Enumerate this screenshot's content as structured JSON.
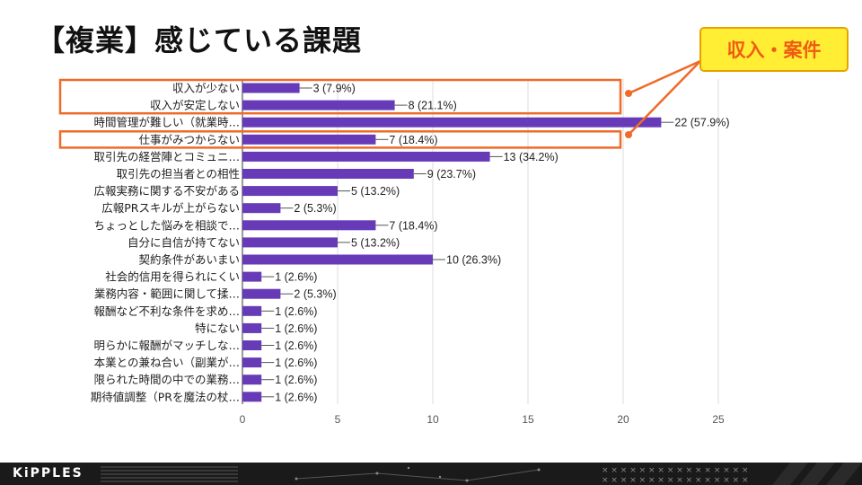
{
  "slide": {
    "title": "【複業】感じている課題",
    "callout_label": "収入・案件",
    "footer_logo": "KiPPLES"
  },
  "colors": {
    "bar": "#673ab7",
    "highlight": "#f06a28",
    "callout_bg": "#ffee33",
    "callout_text": "#f05a14",
    "footer_bg": "#1a1a1a"
  },
  "chart_data": {
    "type": "bar",
    "orientation": "horizontal",
    "categories": [
      "収入が少ない",
      "収入が安定しない",
      "時間管理が難しい（就業時…",
      "仕事がみつからない",
      "取引先の経営陣とコミュニ…",
      "取引先の担当者との相性",
      "広報実務に関する不安がある",
      "広報PRスキルが上がらない",
      "ちょっとした悩みを相談で…",
      "自分に自信が持てない",
      "契約条件があいまい",
      "社会的信用を得られにくい",
      "業務内容・範囲に関して揉…",
      "報酬など不利な条件を求め…",
      "特にない",
      "明らかに報酬がマッチしな…",
      "本業との兼ね合い（副業が…",
      "限られた時間の中での業務…",
      "期待値調整（PRを魔法の杖…"
    ],
    "values": [
      3,
      8,
      22,
      7,
      13,
      9,
      5,
      2,
      7,
      5,
      10,
      1,
      2,
      1,
      1,
      1,
      1,
      1,
      1
    ],
    "value_labels": [
      "3 (7.9%)",
      "8 (21.1%)",
      "22 (57.9%)",
      "7 (18.4%)",
      "13 (34.2%)",
      "9 (23.7%)",
      "5 (13.2%)",
      "2 (5.3%)",
      "7 (18.4%)",
      "5 (13.2%)",
      "10 (26.3%)",
      "1 (2.6%)",
      "2 (5.3%)",
      "1 (2.6%)",
      "1 (2.6%)",
      "1 (2.6%)",
      "1 (2.6%)",
      "1 (2.6%)",
      "1 (2.6%)"
    ],
    "xlim": [
      0,
      25
    ],
    "xticks": [
      "0",
      "5",
      "10",
      "15",
      "20",
      "25"
    ],
    "grid": true,
    "highlighted_categories": [
      0,
      1,
      3
    ]
  }
}
